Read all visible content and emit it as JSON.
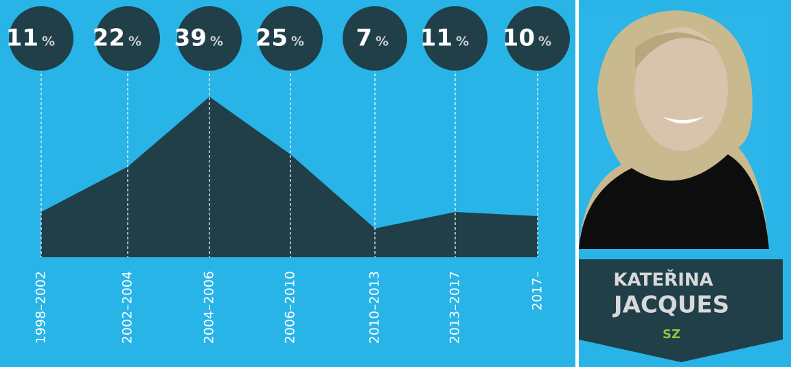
{
  "chart_data": {
    "type": "area",
    "categories": [
      "1998–2002",
      "2002–2004",
      "2004–2006",
      "2006–2010",
      "2010–2013",
      "2013–2017",
      "2017–"
    ],
    "values": [
      11,
      22,
      39,
      25,
      7,
      11,
      10
    ],
    "unit": "%",
    "color": "#203f48"
  },
  "profile": {
    "first_name": "KATEŘINA",
    "last_name": "JACQUES",
    "party": "SZ"
  }
}
